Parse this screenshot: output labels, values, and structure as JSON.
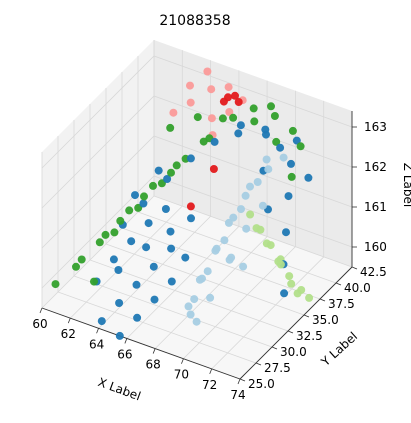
{
  "chart_data": {
    "type": "scatter",
    "projection": "3d",
    "title": "21088358",
    "xlabel": "X Label",
    "ylabel": "Y Label",
    "zlabel": "Z Label",
    "xlim": [
      60,
      74
    ],
    "ylim": [
      25.0,
      42.5
    ],
    "zlim": [
      159.5,
      163.4
    ],
    "x_ticks": [
      "60",
      "62",
      "64",
      "66",
      "68",
      "70",
      "72",
      "74"
    ],
    "y_ticks": [
      "25.0",
      "27.5",
      "30.0",
      "32.5",
      "35.0",
      "37.5",
      "40.0",
      "42.5"
    ],
    "z_ticks": [
      "160",
      "161",
      "162",
      "163"
    ],
    "grid": true,
    "series": [
      {
        "color": "#33a02c",
        "points": [
          [
            60.5,
            26.0,
            160.0
          ],
          [
            61.5,
            27.0,
            160.4
          ],
          [
            62.5,
            28.5,
            160.9
          ],
          [
            63.5,
            29.5,
            161.4
          ],
          [
            64.5,
            31.0,
            161.9
          ],
          [
            65.5,
            33.0,
            162.3
          ],
          [
            61.0,
            29.0,
            160.2
          ],
          [
            62.0,
            30.5,
            160.7
          ],
          [
            63.0,
            32.0,
            161.2
          ],
          [
            64.0,
            33.5,
            161.7
          ],
          [
            65.0,
            35.0,
            162.1
          ],
          [
            66.0,
            37.0,
            162.5
          ],
          [
            61.5,
            33.0,
            160.3
          ],
          [
            62.5,
            34.5,
            160.8
          ],
          [
            63.5,
            36.0,
            161.3
          ],
          [
            64.5,
            37.5,
            161.8
          ],
          [
            65.5,
            39.0,
            162.2
          ],
          [
            66.5,
            40.5,
            162.6
          ],
          [
            67.5,
            41.5,
            162.8
          ],
          [
            69.0,
            41.5,
            162.8
          ],
          [
            70.5,
            41.0,
            162.7
          ],
          [
            71.5,
            40.0,
            162.6
          ],
          [
            66.0,
            40.0,
            162.6
          ],
          [
            68.0,
            40.5,
            162.7
          ],
          [
            70.0,
            39.5,
            162.6
          ],
          [
            64.0,
            40.5,
            162.3
          ],
          [
            62.5,
            39.5,
            162.0
          ],
          [
            72.0,
            37.5,
            162.3
          ],
          [
            68.5,
            42.0,
            162.9
          ],
          [
            63.0,
            26.5,
            160.3
          ]
        ]
      },
      {
        "color": "#fb9a99",
        "points": [
          [
            63.5,
            40.5,
            162.6
          ],
          [
            64.5,
            41.5,
            162.9
          ],
          [
            65.5,
            42.0,
            163.0
          ],
          [
            66.5,
            42.0,
            162.8
          ],
          [
            64.0,
            42.0,
            163.2
          ],
          [
            65.0,
            40.5,
            162.4
          ],
          [
            63.0,
            41.5,
            162.8
          ],
          [
            66.0,
            41.0,
            162.6
          ],
          [
            62.5,
            40.0,
            162.3
          ],
          [
            65.5,
            39.5,
            162.2
          ]
        ]
      },
      {
        "color": "#e31a1c",
        "points": [
          [
            66.0,
            40.8,
            163.0
          ],
          [
            66.5,
            40.8,
            163.1
          ],
          [
            65.8,
            40.6,
            162.9
          ],
          [
            66.8,
            40.7,
            163.0
          ],
          [
            66.5,
            37.5,
            161.8
          ],
          [
            66.0,
            35.0,
            161.2
          ]
        ]
      },
      {
        "color": "#1f78b4",
        "points": [
          [
            62.5,
            28.0,
            160.0
          ],
          [
            63.5,
            28.5,
            160.6
          ],
          [
            64.5,
            29.0,
            161.1
          ],
          [
            65.5,
            29.5,
            161.6
          ],
          [
            66.5,
            30.0,
            162.0
          ],
          [
            64.0,
            25.5,
            159.6
          ],
          [
            65.0,
            26.0,
            160.1
          ],
          [
            66.0,
            26.5,
            160.6
          ],
          [
            67.0,
            27.0,
            161.1
          ],
          [
            68.0,
            27.5,
            161.6
          ],
          [
            65.5,
            25.0,
            159.5
          ],
          [
            66.5,
            25.5,
            160.0
          ],
          [
            67.5,
            26.0,
            160.5
          ],
          [
            68.5,
            26.5,
            161.0
          ],
          [
            69.0,
            27.5,
            161.5
          ],
          [
            63.0,
            31.0,
            161.0
          ],
          [
            64.0,
            32.0,
            161.5
          ],
          [
            65.0,
            33.5,
            162.0
          ],
          [
            66.0,
            35.0,
            162.4
          ],
          [
            67.0,
            36.5,
            162.7
          ],
          [
            68.0,
            38.0,
            162.8
          ],
          [
            69.5,
            39.0,
            162.8
          ],
          [
            70.5,
            39.0,
            162.6
          ],
          [
            71.5,
            38.5,
            162.4
          ],
          [
            72.0,
            37.0,
            161.9
          ],
          [
            72.5,
            35.5,
            161.3
          ],
          [
            73.0,
            34.0,
            160.8
          ],
          [
            73.5,
            33.0,
            160.3
          ],
          [
            71.0,
            36.0,
            161.6
          ],
          [
            70.0,
            37.5,
            162.2
          ],
          [
            62.5,
            34.0,
            161.2
          ],
          [
            63.5,
            35.5,
            161.7
          ],
          [
            67.5,
            28.5,
            161.8
          ],
          [
            68.5,
            29.5,
            162.1
          ],
          [
            66.0,
            28.0,
            161.3
          ],
          [
            64.5,
            27.0,
            160.7
          ],
          [
            69.0,
            40.0,
            162.7
          ],
          [
            67.5,
            39.5,
            162.7
          ],
          [
            71.0,
            40.5,
            162.6
          ],
          [
            72.5,
            39.0,
            162.1
          ]
        ]
      },
      {
        "color": "#a6cee3",
        "points": [
          [
            69.0,
            28.0,
            160.2
          ],
          [
            69.5,
            29.0,
            160.8
          ],
          [
            70.0,
            30.0,
            161.4
          ],
          [
            70.5,
            31.0,
            162.0
          ],
          [
            71.0,
            32.5,
            162.5
          ],
          [
            68.5,
            30.0,
            160.0
          ],
          [
            69.0,
            31.0,
            160.6
          ],
          [
            69.5,
            32.5,
            161.2
          ],
          [
            70.0,
            34.0,
            161.8
          ],
          [
            70.5,
            35.5,
            162.3
          ],
          [
            68.0,
            32.0,
            160.1
          ],
          [
            68.5,
            33.5,
            160.7
          ],
          [
            69.0,
            35.0,
            161.3
          ],
          [
            69.5,
            36.5,
            161.9
          ],
          [
            70.0,
            38.0,
            162.4
          ],
          [
            69.8,
            27.5,
            160.0
          ],
          [
            70.3,
            28.5,
            160.5
          ],
          [
            71.0,
            30.0,
            161.3
          ],
          [
            71.5,
            31.5,
            161.9
          ],
          [
            72.0,
            33.0,
            162.3
          ],
          [
            70.8,
            36.5,
            162.5
          ],
          [
            71.2,
            38.0,
            162.6
          ],
          [
            68.7,
            29.0,
            159.8
          ],
          [
            69.3,
            34.0,
            160.5
          ],
          [
            70.6,
            33.0,
            160.6
          ]
        ]
      },
      {
        "color": "#b2df8a",
        "points": [
          [
            72.0,
            31.0,
            162.4
          ],
          [
            72.5,
            31.5,
            162.0
          ],
          [
            73.0,
            32.0,
            161.6
          ],
          [
            73.5,
            32.5,
            161.1
          ],
          [
            74.0,
            33.0,
            160.6
          ],
          [
            74.0,
            34.0,
            160.2
          ],
          [
            73.5,
            33.8,
            160.6
          ],
          [
            73.0,
            33.2,
            161.0
          ],
          [
            72.5,
            32.5,
            161.5
          ],
          [
            72.0,
            32.0,
            161.9
          ],
          [
            73.8,
            35.0,
            160.1
          ],
          [
            74.0,
            35.8,
            159.8
          ],
          [
            72.8,
            34.0,
            160.9
          ]
        ]
      }
    ]
  }
}
